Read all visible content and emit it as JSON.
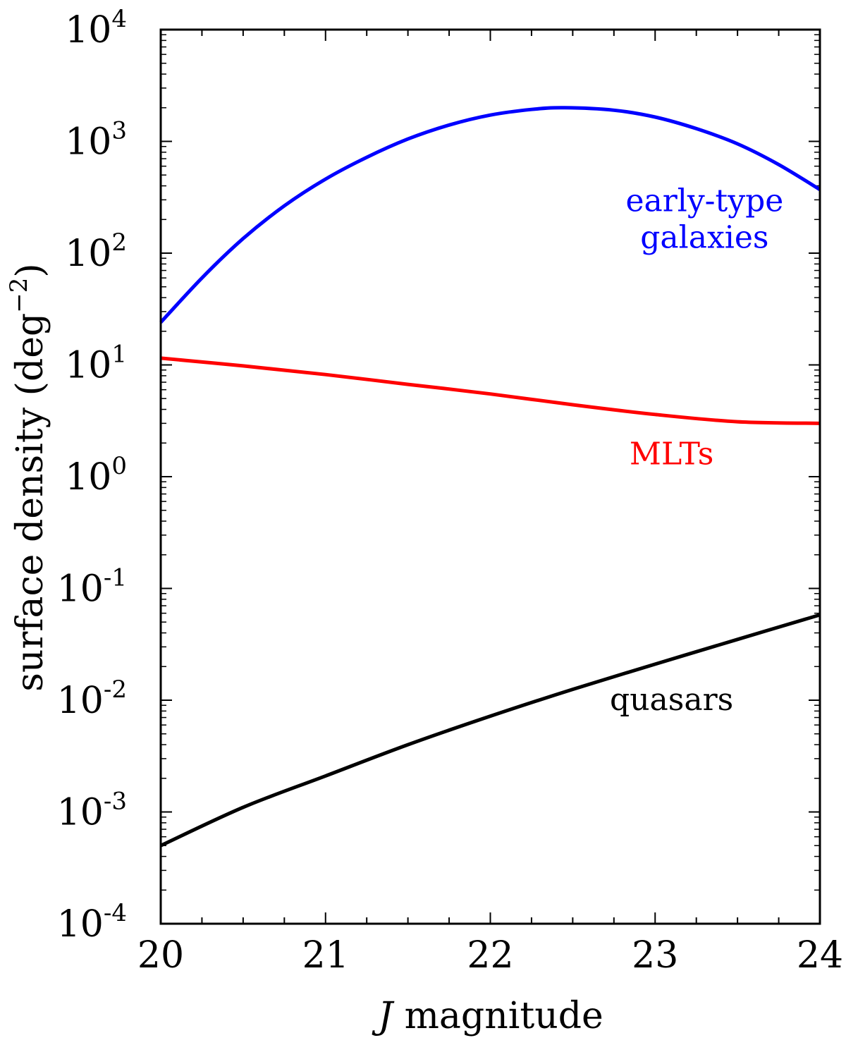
{
  "chart_data": {
    "type": "line",
    "title": "",
    "xlabel": {
      "italic": "J",
      "rest": " magnitude"
    },
    "ylabel": {
      "main": "surface density (deg",
      "sup": "−2",
      "close": ")"
    },
    "xlim": [
      20,
      24
    ],
    "ylim_log10": [
      -4,
      4
    ],
    "x_ticks": [
      {
        "value": 20,
        "label": "20"
      },
      {
        "value": 21,
        "label": "21"
      },
      {
        "value": 22,
        "label": "22"
      },
      {
        "value": 23,
        "label": "23"
      },
      {
        "value": 24,
        "label": "24"
      }
    ],
    "y_ticks": [
      {
        "exp": 4,
        "base": "10",
        "sup": "4"
      },
      {
        "exp": 3,
        "base": "10",
        "sup": "3"
      },
      {
        "exp": 2,
        "base": "10",
        "sup": "2"
      },
      {
        "exp": 1,
        "base": "10",
        "sup": "1"
      },
      {
        "exp": 0,
        "base": "10",
        "sup": "0"
      },
      {
        "exp": -1,
        "base": "10",
        "sup": "-1"
      },
      {
        "exp": -2,
        "base": "10",
        "sup": "-2"
      },
      {
        "exp": -3,
        "base": "10",
        "sup": "-3"
      },
      {
        "exp": -4,
        "base": "10",
        "sup": "-4"
      }
    ],
    "series": [
      {
        "name": "early-type galaxies",
        "label_lines": [
          "early-type",
          "galaxies"
        ],
        "color": "#0000ff",
        "label_pos": {
          "x": 23.3,
          "ylog": 2.3
        },
        "x": [
          20.0,
          20.25,
          20.5,
          20.75,
          21.0,
          21.25,
          21.5,
          21.75,
          22.0,
          22.25,
          22.45,
          22.75,
          23.0,
          23.25,
          23.5,
          23.75,
          24.0
        ],
        "y": [
          24,
          60,
          135,
          265,
          460,
          720,
          1050,
          1400,
          1720,
          1930,
          2000,
          1900,
          1650,
          1300,
          950,
          620,
          370
        ]
      },
      {
        "name": "MLTs",
        "label_lines": [
          "MLTs"
        ],
        "color": "#ff0000",
        "label_pos": {
          "x": 23.1,
          "ylog": 0.2
        },
        "x": [
          20.0,
          20.5,
          21.0,
          21.5,
          22.0,
          22.5,
          23.0,
          23.5,
          24.0
        ],
        "y": [
          11.5,
          9.8,
          8.2,
          6.7,
          5.5,
          4.4,
          3.6,
          3.1,
          3.0
        ]
      },
      {
        "name": "quasars",
        "label_lines": [
          "quasars"
        ],
        "color": "#000000",
        "label_pos": {
          "x": 23.1,
          "ylog": -2.0
        },
        "x": [
          20.0,
          20.5,
          21.0,
          21.5,
          22.0,
          22.5,
          23.0,
          23.5,
          24.0
        ],
        "y": [
          0.0005,
          0.0011,
          0.0021,
          0.004,
          0.0072,
          0.0125,
          0.021,
          0.035,
          0.058
        ]
      }
    ]
  }
}
